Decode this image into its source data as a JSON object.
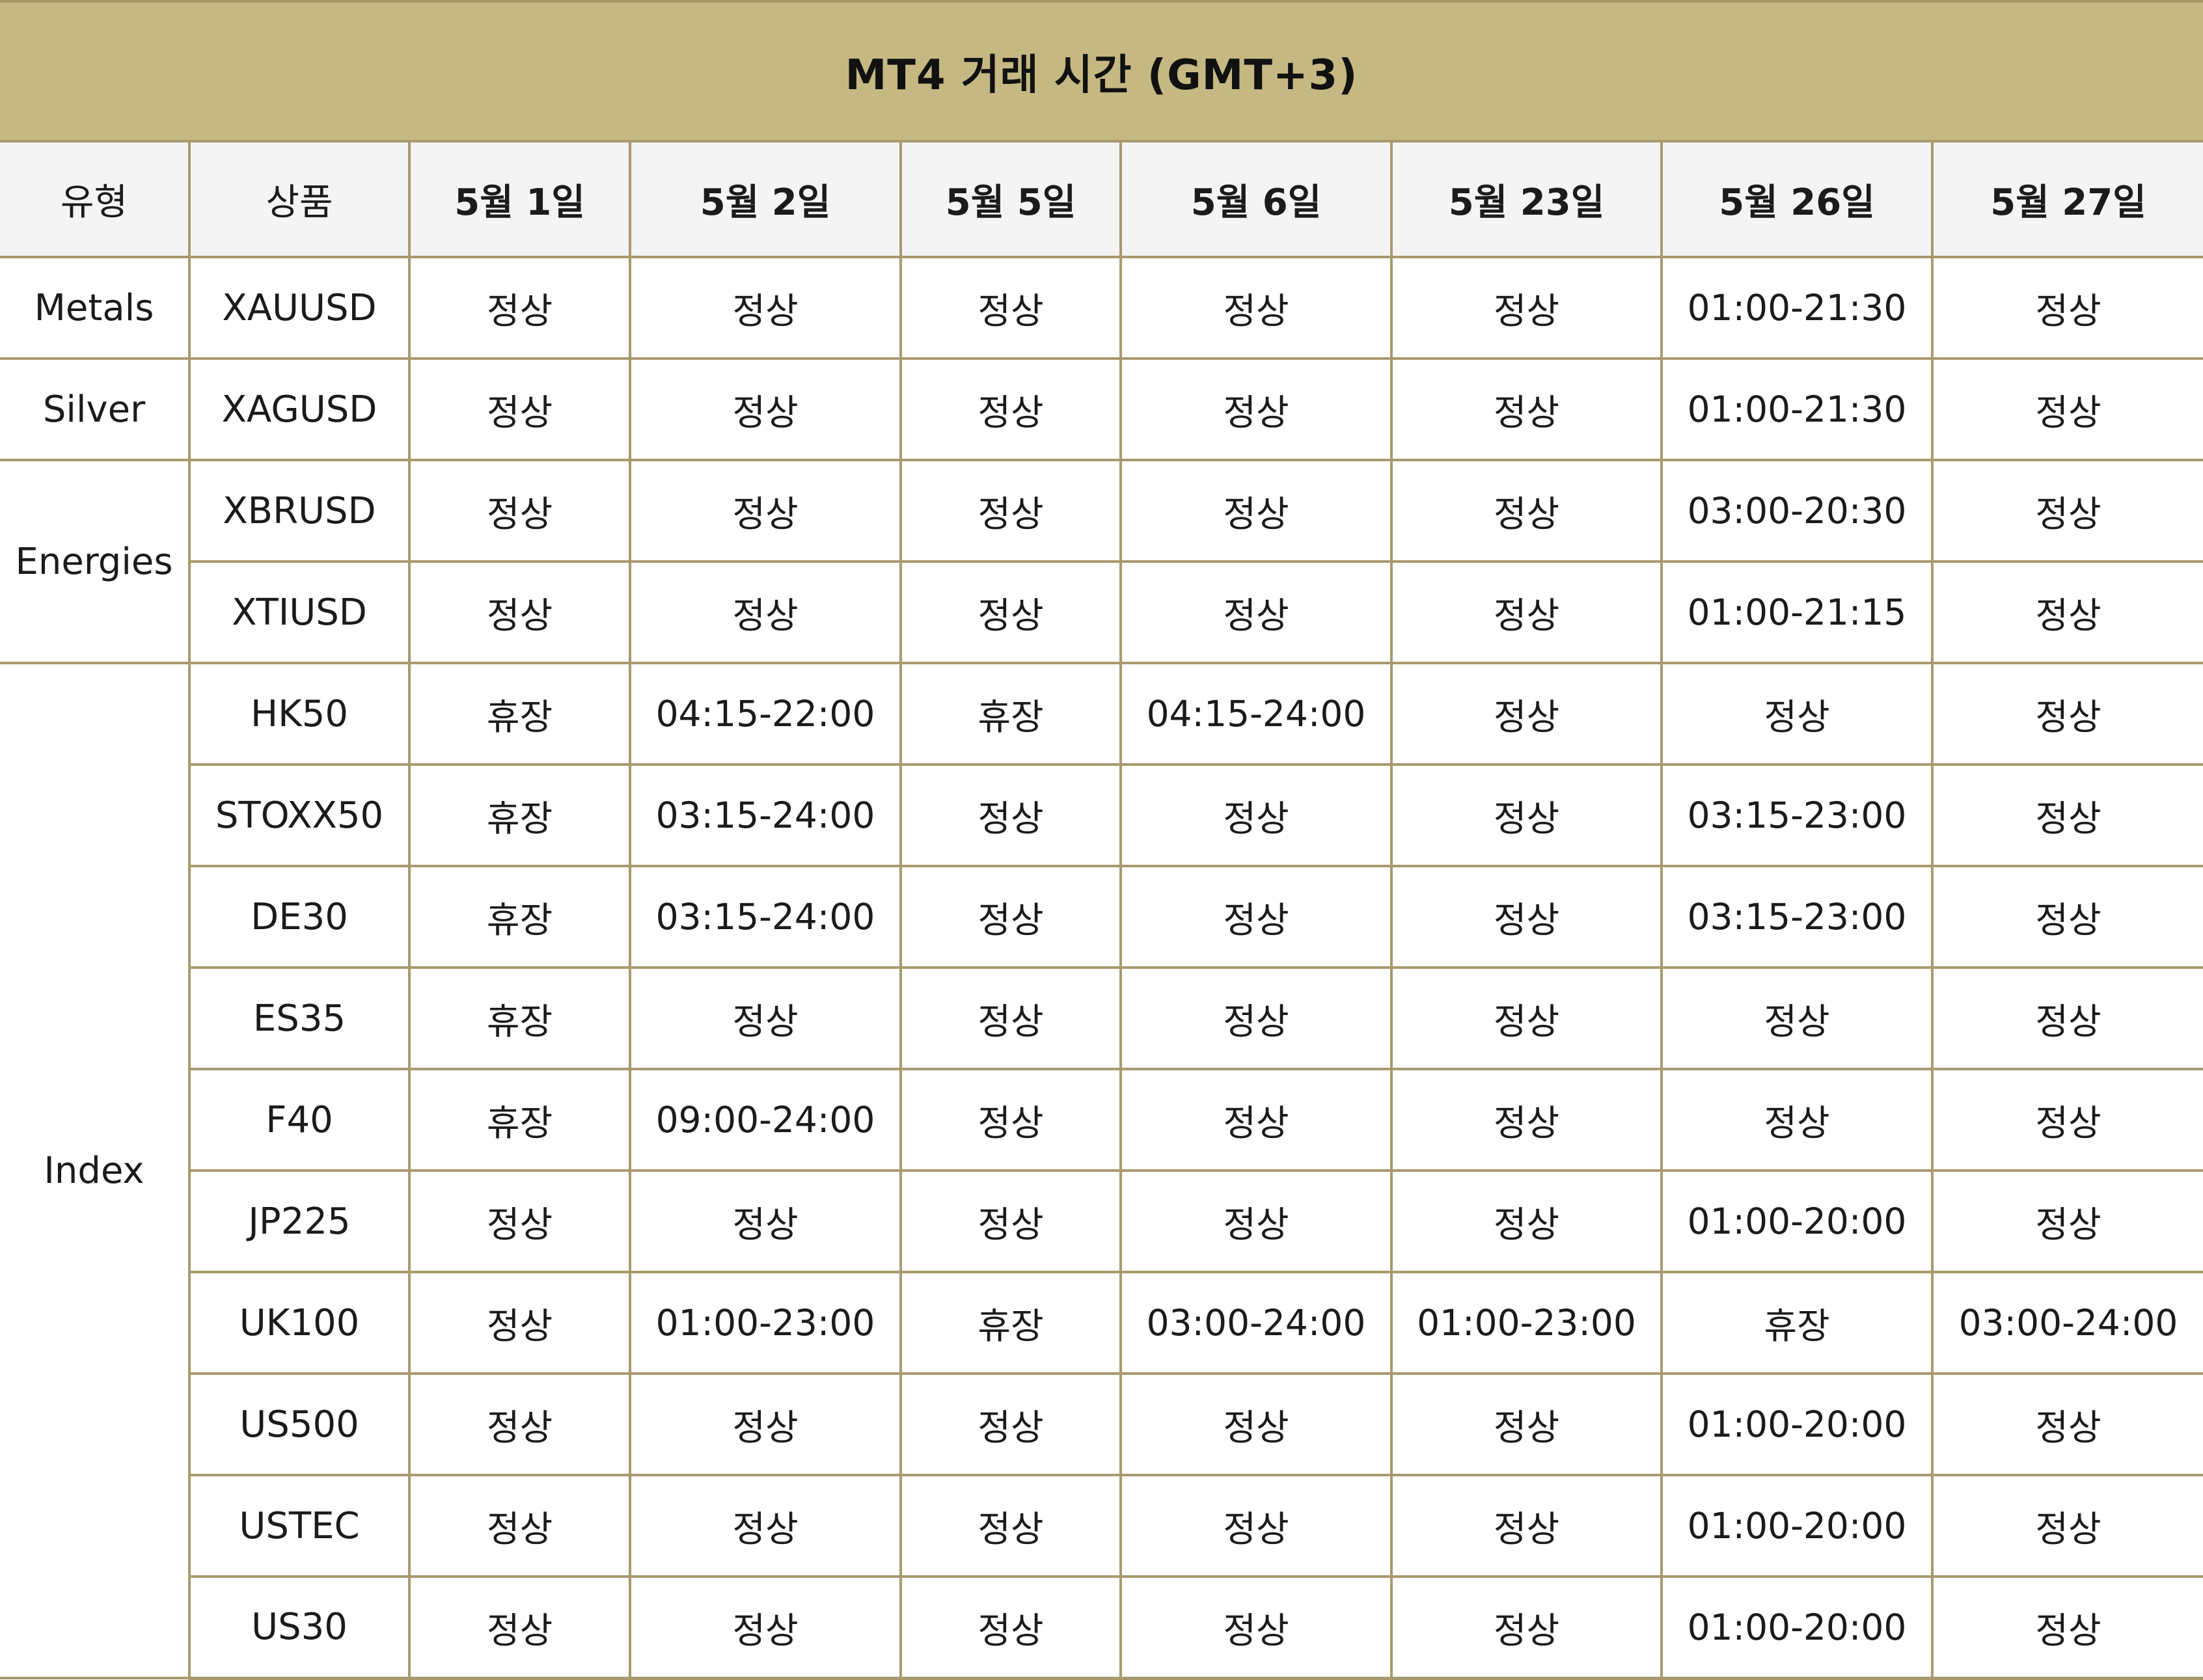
{
  "title": "MT4 거래 시간 (GMT+3)",
  "headers": {
    "type": "유형",
    "product": "상품",
    "dates": [
      "5월 1일",
      "5월 2일",
      "5월 5일",
      "5월 6일",
      "5월 23일",
      "5월 26일",
      "5월 27일"
    ]
  },
  "colors": {
    "header_bar": "#c5b882",
    "border": "#a89a6e",
    "closed_text": "#b9a56a",
    "column_header_bg": "#f4f4f4"
  },
  "groups": [
    {
      "type": "Metals",
      "rows": [
        {
          "product": "XAUUSD",
          "values": [
            "정상",
            "정상",
            "정상",
            "정상",
            "정상",
            "01:00-21:30",
            "정상"
          ]
        }
      ]
    },
    {
      "type": "Silver",
      "rows": [
        {
          "product": "XAGUSD",
          "values": [
            "정상",
            "정상",
            "정상",
            "정상",
            "정상",
            "01:00-21:30",
            "정상"
          ]
        }
      ]
    },
    {
      "type": "Energies",
      "rows": [
        {
          "product": "XBRUSD",
          "values": [
            "정상",
            "정상",
            "정상",
            "정상",
            "정상",
            "03:00-20:30",
            "정상"
          ]
        },
        {
          "product": "XTIUSD",
          "values": [
            "정상",
            "정상",
            "정상",
            "정상",
            "정상",
            "01:00-21:15",
            "정상"
          ]
        }
      ]
    },
    {
      "type": "Index",
      "rows": [
        {
          "product": "HK50",
          "values": [
            "휴장",
            "04:15-22:00",
            "휴장",
            "04:15-24:00",
            "정상",
            "정상",
            "정상"
          ]
        },
        {
          "product": "STOXX50",
          "values": [
            "휴장",
            "03:15-24:00",
            "정상",
            "정상",
            "정상",
            "03:15-23:00",
            "정상"
          ]
        },
        {
          "product": "DE30",
          "values": [
            "휴장",
            "03:15-24:00",
            "정상",
            "정상",
            "정상",
            "03:15-23:00",
            "정상"
          ]
        },
        {
          "product": "ES35",
          "values": [
            "휴장",
            "정상",
            "정상",
            "정상",
            "정상",
            "정상",
            "정상"
          ]
        },
        {
          "product": "F40",
          "values": [
            "휴장",
            "09:00-24:00",
            "정상",
            "정상",
            "정상",
            "정상",
            "정상"
          ]
        },
        {
          "product": "JP225",
          "values": [
            "정상",
            "정상",
            "정상",
            "정상",
            "정상",
            "01:00-20:00",
            "정상"
          ]
        },
        {
          "product": "UK100",
          "values": [
            "정상",
            "01:00-23:00",
            "휴장",
            "03:00-24:00",
            "01:00-23:00",
            "휴장",
            "03:00-24:00"
          ]
        },
        {
          "product": "US500",
          "values": [
            "정상",
            "정상",
            "정상",
            "정상",
            "정상",
            "01:00-20:00",
            "정상"
          ]
        },
        {
          "product": "USTEC",
          "values": [
            "정상",
            "정상",
            "정상",
            "정상",
            "정상",
            "01:00-20:00",
            "정상"
          ]
        },
        {
          "product": "US30",
          "values": [
            "정상",
            "정상",
            "정상",
            "정상",
            "정상",
            "01:00-20:00",
            "정상"
          ]
        }
      ]
    }
  ],
  "closed_label": "휴장"
}
